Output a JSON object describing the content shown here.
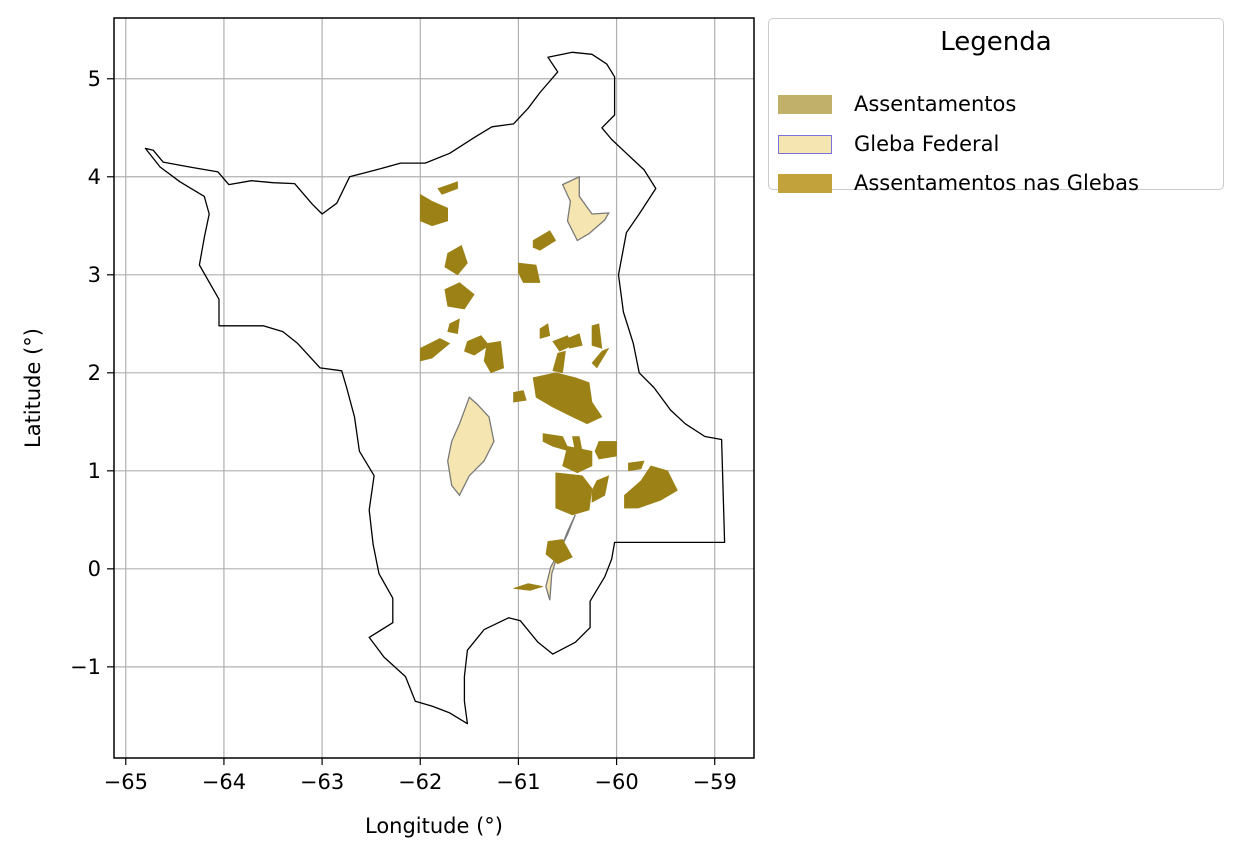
{
  "chart_data": {
    "type": "map",
    "xlabel": "Longitude (°)",
    "ylabel": "Latitude (°)",
    "xlim": [
      -65.12,
      -58.6
    ],
    "ylim": [
      -1.93,
      5.62
    ],
    "grid": true,
    "x_ticks": [
      {
        "value": -65,
        "label": "−65"
      },
      {
        "value": -64,
        "label": "−64"
      },
      {
        "value": -63,
        "label": "−63"
      },
      {
        "value": -62,
        "label": "−62"
      },
      {
        "value": -61,
        "label": "−61"
      },
      {
        "value": -60,
        "label": "−60"
      },
      {
        "value": -59,
        "label": "−59"
      }
    ],
    "y_ticks": [
      {
        "value": -1,
        "label": "−1"
      },
      {
        "value": 0,
        "label": "0"
      },
      {
        "value": 1,
        "label": "1"
      },
      {
        "value": 2,
        "label": "2"
      },
      {
        "value": 3,
        "label": "3"
      },
      {
        "value": 4,
        "label": "4"
      },
      {
        "value": 5,
        "label": "5"
      }
    ],
    "colors": {
      "assentamentos": "#c0b06a",
      "gleba_fill": "#f5e5b0",
      "gleba_edge": "#7b73d9",
      "overlap": "#c2a23a",
      "overlap_map": "#9c8216",
      "boundary": "#000000"
    },
    "boundary": [
      [
        -64.8,
        4.29
      ],
      [
        -64.72,
        4.27
      ],
      [
        -64.62,
        4.15
      ],
      [
        -64.35,
        4.1
      ],
      [
        -64.06,
        4.05
      ],
      [
        -63.95,
        3.92
      ],
      [
        -63.72,
        3.96
      ],
      [
        -63.5,
        3.94
      ],
      [
        -63.28,
        3.93
      ],
      [
        -63.1,
        3.72
      ],
      [
        -63.0,
        3.62
      ],
      [
        -62.85,
        3.73
      ],
      [
        -62.72,
        4.0
      ],
      [
        -62.45,
        4.07
      ],
      [
        -62.2,
        4.14
      ],
      [
        -61.95,
        4.14
      ],
      [
        -61.7,
        4.24
      ],
      [
        -61.45,
        4.4
      ],
      [
        -61.27,
        4.51
      ],
      [
        -61.05,
        4.54
      ],
      [
        -60.9,
        4.7
      ],
      [
        -60.78,
        4.86
      ],
      [
        -60.6,
        5.07
      ],
      [
        -60.7,
        5.22
      ],
      [
        -60.45,
        5.27
      ],
      [
        -60.25,
        5.25
      ],
      [
        -60.1,
        5.15
      ],
      [
        -60.02,
        5.02
      ],
      [
        -60.02,
        4.63
      ],
      [
        -60.15,
        4.5
      ],
      [
        -60.05,
        4.38
      ],
      [
        -59.9,
        4.24
      ],
      [
        -59.72,
        4.07
      ],
      [
        -59.6,
        3.88
      ],
      [
        -59.77,
        3.62
      ],
      [
        -59.9,
        3.43
      ],
      [
        -59.98,
        3.0
      ],
      [
        -59.93,
        2.62
      ],
      [
        -59.83,
        2.3
      ],
      [
        -59.77,
        2.0
      ],
      [
        -59.62,
        1.85
      ],
      [
        -59.45,
        1.62
      ],
      [
        -59.3,
        1.48
      ],
      [
        -59.1,
        1.35
      ],
      [
        -58.93,
        1.32
      ],
      [
        -58.9,
        0.27
      ],
      [
        -60.02,
        0.27
      ],
      [
        -60.05,
        0.1
      ],
      [
        -60.12,
        -0.08
      ],
      [
        -60.27,
        -0.33
      ],
      [
        -60.27,
        -0.6
      ],
      [
        -60.42,
        -0.75
      ],
      [
        -60.65,
        -0.87
      ],
      [
        -60.8,
        -0.75
      ],
      [
        -60.98,
        -0.53
      ],
      [
        -61.1,
        -0.5
      ],
      [
        -61.35,
        -0.62
      ],
      [
        -61.52,
        -0.83
      ],
      [
        -61.55,
        -1.1
      ],
      [
        -61.55,
        -1.35
      ],
      [
        -61.52,
        -1.58
      ],
      [
        -61.7,
        -1.47
      ],
      [
        -61.88,
        -1.4
      ],
      [
        -62.05,
        -1.35
      ],
      [
        -62.15,
        -1.1
      ],
      [
        -62.37,
        -0.9
      ],
      [
        -62.52,
        -0.7
      ],
      [
        -62.28,
        -0.55
      ],
      [
        -62.28,
        -0.3
      ],
      [
        -62.42,
        -0.05
      ],
      [
        -62.48,
        0.25
      ],
      [
        -62.52,
        0.6
      ],
      [
        -62.47,
        0.95
      ],
      [
        -62.62,
        1.2
      ],
      [
        -62.67,
        1.55
      ],
      [
        -62.75,
        1.85
      ],
      [
        -62.8,
        2.02
      ],
      [
        -63.02,
        2.05
      ],
      [
        -63.25,
        2.3
      ],
      [
        -63.4,
        2.42
      ],
      [
        -63.6,
        2.48
      ],
      [
        -63.83,
        2.48
      ],
      [
        -64.05,
        2.48
      ],
      [
        -64.05,
        2.75
      ],
      [
        -64.25,
        3.1
      ],
      [
        -64.2,
        3.38
      ],
      [
        -64.15,
        3.62
      ],
      [
        -64.2,
        3.8
      ],
      [
        -64.45,
        3.95
      ],
      [
        -64.65,
        4.1
      ],
      [
        -64.8,
        4.29
      ]
    ],
    "glebas": [
      {
        "name": "",
        "points": [
          [
            -61.5,
            1.75
          ],
          [
            -61.42,
            1.68
          ],
          [
            -61.3,
            1.55
          ],
          [
            -61.25,
            1.3
          ],
          [
            -61.35,
            1.1
          ],
          [
            -61.5,
            0.95
          ],
          [
            -61.6,
            0.75
          ],
          [
            -61.68,
            0.85
          ],
          [
            -61.72,
            1.1
          ],
          [
            -61.68,
            1.3
          ],
          [
            -61.6,
            1.48
          ]
        ]
      },
      {
        "name": "",
        "points": [
          [
            -60.55,
            3.92
          ],
          [
            -60.38,
            4.0
          ],
          [
            -60.38,
            3.8
          ],
          [
            -60.25,
            3.62
          ],
          [
            -60.08,
            3.63
          ],
          [
            -60.12,
            3.56
          ],
          [
            -60.28,
            3.42
          ],
          [
            -60.4,
            3.35
          ],
          [
            -60.5,
            3.55
          ],
          [
            -60.47,
            3.75
          ]
        ]
      },
      {
        "name": "",
        "points": [
          [
            -60.42,
            0.55
          ],
          [
            -60.5,
            0.38
          ],
          [
            -60.57,
            0.2
          ],
          [
            -60.67,
            0.02
          ],
          [
            -60.72,
            -0.18
          ],
          [
            -60.68,
            -0.32
          ],
          [
            -60.66,
            -0.05
          ],
          [
            -60.6,
            0.15
          ],
          [
            -60.5,
            0.35
          ]
        ]
      }
    ],
    "settlements_in_glebas": [
      {
        "points": [
          [
            -62.0,
            3.82
          ],
          [
            -61.88,
            3.75
          ],
          [
            -61.72,
            3.68
          ],
          [
            -61.72,
            3.55
          ],
          [
            -61.88,
            3.5
          ],
          [
            -62.0,
            3.55
          ]
        ]
      },
      {
        "points": [
          [
            -61.82,
            3.88
          ],
          [
            -61.62,
            3.95
          ],
          [
            -61.62,
            3.88
          ],
          [
            -61.78,
            3.82
          ]
        ]
      },
      {
        "points": [
          [
            -61.72,
            3.22
          ],
          [
            -61.58,
            3.3
          ],
          [
            -61.52,
            3.12
          ],
          [
            -61.62,
            3.0
          ],
          [
            -61.75,
            3.08
          ]
        ]
      },
      {
        "points": [
          [
            -61.75,
            2.85
          ],
          [
            -61.6,
            2.92
          ],
          [
            -61.45,
            2.8
          ],
          [
            -61.55,
            2.65
          ],
          [
            -61.72,
            2.68
          ]
        ]
      },
      {
        "points": [
          [
            -62.0,
            2.25
          ],
          [
            -61.8,
            2.35
          ],
          [
            -61.7,
            2.3
          ],
          [
            -61.88,
            2.15
          ],
          [
            -62.0,
            2.12
          ]
        ]
      },
      {
        "points": [
          [
            -61.7,
            2.5
          ],
          [
            -61.6,
            2.55
          ],
          [
            -61.62,
            2.4
          ],
          [
            -61.72,
            2.42
          ]
        ]
      },
      {
        "points": [
          [
            -61.52,
            2.32
          ],
          [
            -61.38,
            2.38
          ],
          [
            -61.3,
            2.28
          ],
          [
            -61.45,
            2.18
          ],
          [
            -61.55,
            2.22
          ]
        ]
      },
      {
        "points": [
          [
            -61.32,
            2.3
          ],
          [
            -61.18,
            2.32
          ],
          [
            -61.15,
            2.05
          ],
          [
            -61.28,
            2.0
          ],
          [
            -61.35,
            2.12
          ]
        ]
      },
      {
        "points": [
          [
            -60.85,
            3.35
          ],
          [
            -60.68,
            3.45
          ],
          [
            -60.62,
            3.35
          ],
          [
            -60.78,
            3.25
          ],
          [
            -60.85,
            3.28
          ]
        ]
      },
      {
        "points": [
          [
            -61.0,
            3.12
          ],
          [
            -60.82,
            3.1
          ],
          [
            -60.78,
            2.92
          ],
          [
            -60.95,
            2.92
          ],
          [
            -61.0,
            3.02
          ]
        ]
      },
      {
        "points": [
          [
            -60.78,
            2.45
          ],
          [
            -60.7,
            2.5
          ],
          [
            -60.68,
            2.38
          ],
          [
            -60.78,
            2.35
          ]
        ]
      },
      {
        "points": [
          [
            -60.65,
            2.32
          ],
          [
            -60.5,
            2.38
          ],
          [
            -60.45,
            2.28
          ],
          [
            -60.58,
            2.22
          ]
        ]
      },
      {
        "points": [
          [
            -60.5,
            2.35
          ],
          [
            -60.38,
            2.4
          ],
          [
            -60.35,
            2.28
          ],
          [
            -60.48,
            2.25
          ]
        ]
      },
      {
        "points": [
          [
            -60.25,
            2.48
          ],
          [
            -60.18,
            2.5
          ],
          [
            -60.15,
            2.25
          ],
          [
            -60.25,
            2.28
          ]
        ]
      },
      {
        "points": [
          [
            -60.15,
            2.22
          ],
          [
            -60.08,
            2.25
          ],
          [
            -60.2,
            2.05
          ],
          [
            -60.25,
            2.1
          ]
        ]
      },
      {
        "points": [
          [
            -60.6,
            2.2
          ],
          [
            -60.52,
            2.22
          ],
          [
            -60.55,
            2.0
          ],
          [
            -60.65,
            2.02
          ]
        ]
      },
      {
        "points": [
          [
            -61.05,
            1.8
          ],
          [
            -60.95,
            1.82
          ],
          [
            -60.92,
            1.72
          ],
          [
            -61.05,
            1.7
          ]
        ]
      },
      {
        "points": [
          [
            -60.85,
            1.95
          ],
          [
            -60.62,
            2.0
          ],
          [
            -60.42,
            1.95
          ],
          [
            -60.28,
            1.9
          ],
          [
            -60.25,
            1.7
          ],
          [
            -60.15,
            1.55
          ],
          [
            -60.3,
            1.48
          ],
          [
            -60.45,
            1.55
          ],
          [
            -60.65,
            1.65
          ],
          [
            -60.82,
            1.75
          ]
        ]
      },
      {
        "points": [
          [
            -60.75,
            1.38
          ],
          [
            -60.55,
            1.35
          ],
          [
            -60.48,
            1.2
          ],
          [
            -60.65,
            1.25
          ],
          [
            -60.75,
            1.3
          ]
        ]
      },
      {
        "points": [
          [
            -60.45,
            1.35
          ],
          [
            -60.38,
            1.35
          ],
          [
            -60.35,
            1.2
          ],
          [
            -60.42,
            1.2
          ]
        ]
      },
      {
        "points": [
          [
            -60.18,
            1.3
          ],
          [
            -60.0,
            1.3
          ],
          [
            -60.0,
            1.15
          ],
          [
            -60.18,
            1.12
          ],
          [
            -60.22,
            1.2
          ]
        ]
      },
      {
        "points": [
          [
            -60.5,
            1.25
          ],
          [
            -60.25,
            1.2
          ],
          [
            -60.25,
            1.05
          ],
          [
            -60.4,
            0.98
          ],
          [
            -60.55,
            1.05
          ]
        ]
      },
      {
        "points": [
          [
            -60.62,
            0.98
          ],
          [
            -60.35,
            0.95
          ],
          [
            -60.25,
            0.82
          ],
          [
            -60.28,
            0.6
          ],
          [
            -60.45,
            0.55
          ],
          [
            -60.62,
            0.62
          ],
          [
            -60.62,
            0.8
          ]
        ]
      },
      {
        "points": [
          [
            -60.2,
            0.9
          ],
          [
            -60.08,
            0.95
          ],
          [
            -60.12,
            0.75
          ],
          [
            -60.25,
            0.68
          ],
          [
            -60.25,
            0.8
          ]
        ]
      },
      {
        "points": [
          [
            -59.88,
            1.08
          ],
          [
            -59.72,
            1.1
          ],
          [
            -59.75,
            1.02
          ],
          [
            -59.88,
            1.0
          ]
        ]
      },
      {
        "points": [
          [
            -59.65,
            1.05
          ],
          [
            -59.48,
            1.0
          ],
          [
            -59.38,
            0.8
          ],
          [
            -59.55,
            0.7
          ],
          [
            -59.78,
            0.62
          ],
          [
            -59.92,
            0.62
          ],
          [
            -59.92,
            0.75
          ],
          [
            -59.75,
            0.9
          ]
        ]
      },
      {
        "points": [
          [
            -60.7,
            0.28
          ],
          [
            -60.55,
            0.3
          ],
          [
            -60.45,
            0.12
          ],
          [
            -60.6,
            0.05
          ],
          [
            -60.72,
            0.15
          ]
        ]
      },
      {
        "points": [
          [
            -61.05,
            -0.2
          ],
          [
            -60.9,
            -0.15
          ],
          [
            -60.75,
            -0.18
          ],
          [
            -60.88,
            -0.22
          ]
        ]
      }
    ]
  },
  "legend": {
    "title": "Legenda",
    "items": [
      {
        "label": "Assentamentos"
      },
      {
        "label": "Gleba Federal"
      },
      {
        "label": "Assentamentos nas Glebas"
      }
    ]
  }
}
